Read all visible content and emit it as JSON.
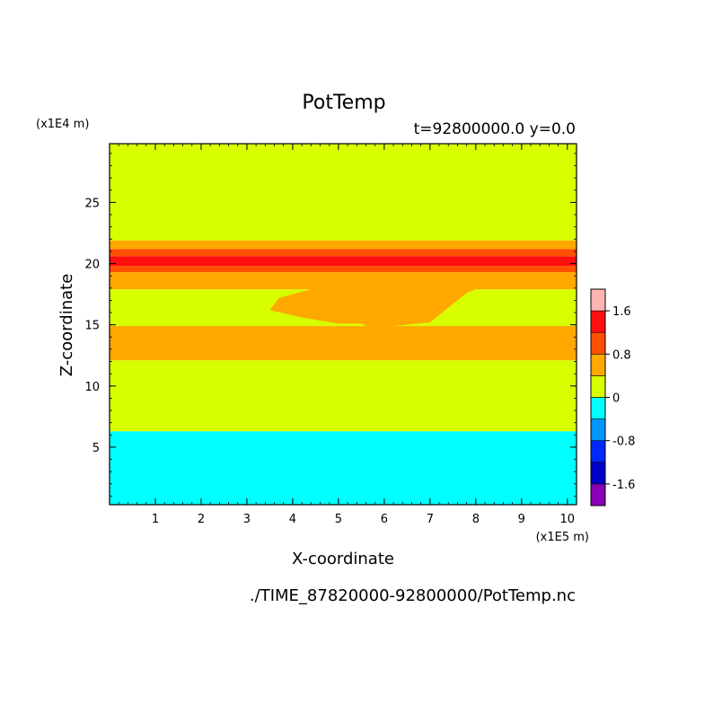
{
  "chart_data": {
    "type": "heatmap",
    "title": "PotTemp",
    "subtitle": "t=92800000.0 y=0.0",
    "xlabel": "X-coordinate",
    "ylabel": "Z-coordinate",
    "x_unit": "(x1E5 m)",
    "y_unit": "(x1E4 m)",
    "source_file": "./TIME_87820000-92800000/PotTemp.nc",
    "xlim": [
      0,
      10.2
    ],
    "ylim": [
      0.3,
      29.8
    ],
    "xticks": [
      1,
      2,
      3,
      4,
      5,
      6,
      7,
      8,
      9,
      10
    ],
    "yticks": [
      5,
      10,
      15,
      20,
      25
    ],
    "colorbar": {
      "levels": [
        -2.0,
        -1.6,
        -1.2,
        -0.8,
        -0.4,
        0,
        0.4,
        0.8,
        1.2,
        1.6,
        2.0
      ],
      "colors": [
        "#8a00b8",
        "#0000c8",
        "#0028ff",
        "#0096ff",
        "#00ffff",
        "#d8ff00",
        "#ffa800",
        "#ff5000",
        "#ff0f0f",
        "#ffb4b4"
      ],
      "tick_values": [
        -1.6,
        -0.8,
        0,
        0.8,
        1.6
      ],
      "tick_labels": [
        "-1.6",
        "-0.8",
        "0",
        "0.8",
        "1.6"
      ]
    },
    "bands": [
      {
        "z_bottom": 0.3,
        "z_top": 6.3,
        "value": -0.2
      },
      {
        "z_bottom": 6.3,
        "z_top": 12.1,
        "value": 0.2
      },
      {
        "z_bottom": 12.1,
        "z_top": 14.9,
        "value": 0.6
      },
      {
        "z_bottom": 14.9,
        "z_top": 17.9,
        "value": 0.2
      },
      {
        "z_bottom": 17.9,
        "z_top": 19.3,
        "value": 0.6
      },
      {
        "z_bottom": 19.3,
        "z_top": 19.8,
        "value": 1.0
      },
      {
        "z_bottom": 19.8,
        "z_top": 20.6,
        "value": 1.4
      },
      {
        "z_bottom": 20.6,
        "z_top": 21.2,
        "value": 1.0
      },
      {
        "z_bottom": 21.2,
        "z_top": 21.9,
        "value": 0.6
      },
      {
        "z_bottom": 21.9,
        "z_top": 29.8,
        "value": 0.2
      }
    ],
    "features": [
      {
        "description": "warm plume",
        "value": 0.6,
        "x": [
          3.5,
          4.2,
          5.0,
          5.5,
          5.6,
          6.2,
          7.0,
          7.8,
          8.0,
          6.8,
          6.0,
          5.2,
          4.4,
          3.7
        ],
        "z": [
          16.2,
          15.6,
          15.1,
          15.1,
          14.9,
          14.9,
          15.2,
          17.6,
          17.9,
          17.9,
          17.9,
          17.9,
          17.9,
          17.2
        ]
      }
    ]
  }
}
